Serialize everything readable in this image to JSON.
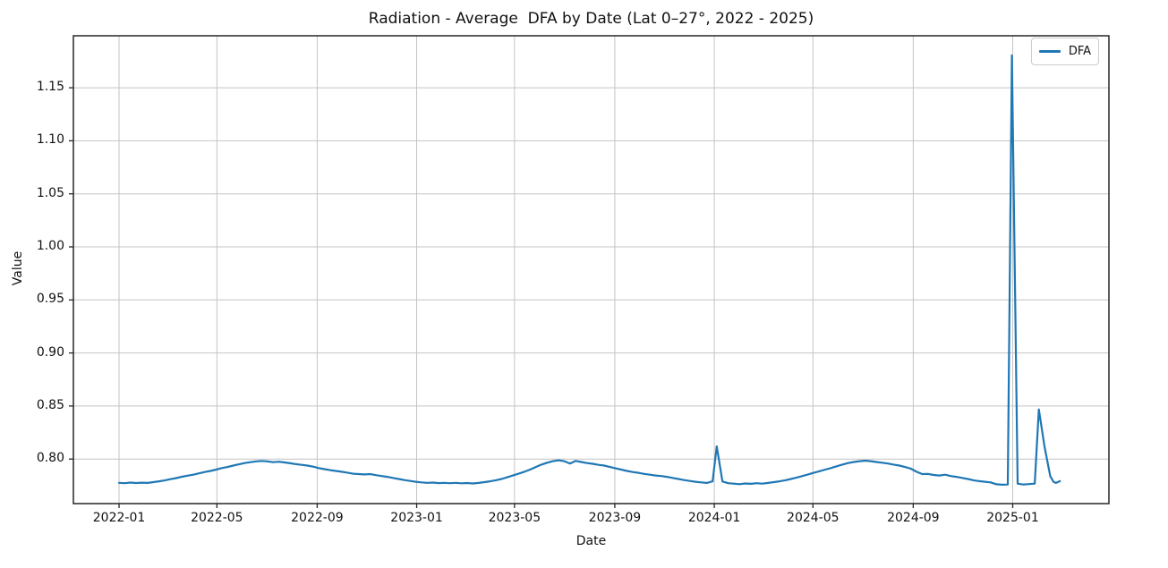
{
  "chart_data": {
    "type": "line",
    "title": "Radiation - Average  DFA by Date (Lat 0–27°, 2022 - 2025)",
    "xlabel": "Date",
    "ylabel": "Value",
    "grid": true,
    "legend": {
      "position": "upper right",
      "entries": [
        {
          "label": "DFA",
          "color": "#1f77b4"
        }
      ]
    },
    "x_axis": {
      "type": "date",
      "lim": [
        "2021-11-06",
        "2025-04-29"
      ],
      "ticks": [
        "2022-01",
        "2022-05",
        "2022-09",
        "2023-01",
        "2023-05",
        "2023-09",
        "2024-01",
        "2024-05",
        "2024-09",
        "2025-01"
      ]
    },
    "y_axis": {
      "lim": [
        0.758,
        1.199
      ],
      "ticks": [
        0.8,
        0.85,
        0.9,
        0.95,
        1.0,
        1.05,
        1.1,
        1.15
      ],
      "tick_labels": [
        "0.80",
        "0.85",
        "0.90",
        "0.95",
        "1.00",
        "1.05",
        "1.10",
        "1.15"
      ]
    },
    "series": [
      {
        "name": "DFA",
        "color": "#1f77b4",
        "line_width": 2.2,
        "points": [
          [
            "2022-01-01",
            0.7776
          ],
          [
            "2022-01-08",
            0.7772
          ],
          [
            "2022-01-15",
            0.7778
          ],
          [
            "2022-01-22",
            0.7774
          ],
          [
            "2022-01-29",
            0.7777
          ],
          [
            "2022-02-05",
            0.7775
          ],
          [
            "2022-02-12",
            0.7782
          ],
          [
            "2022-02-19",
            0.779
          ],
          [
            "2022-02-26",
            0.7798
          ],
          [
            "2022-03-05",
            0.781
          ],
          [
            "2022-03-12",
            0.782
          ],
          [
            "2022-03-19",
            0.7833
          ],
          [
            "2022-03-26",
            0.7843
          ],
          [
            "2022-04-02",
            0.7852
          ],
          [
            "2022-04-09",
            0.7865
          ],
          [
            "2022-04-16",
            0.7878
          ],
          [
            "2022-04-23",
            0.7888
          ],
          [
            "2022-04-30",
            0.79
          ],
          [
            "2022-05-07",
            0.7915
          ],
          [
            "2022-05-14",
            0.7925
          ],
          [
            "2022-05-21",
            0.7938
          ],
          [
            "2022-05-28",
            0.795
          ],
          [
            "2022-06-04",
            0.7962
          ],
          [
            "2022-06-11",
            0.797
          ],
          [
            "2022-06-18",
            0.7978
          ],
          [
            "2022-06-25",
            0.7982
          ],
          [
            "2022-07-02",
            0.7978
          ],
          [
            "2022-07-09",
            0.797
          ],
          [
            "2022-07-16",
            0.7975
          ],
          [
            "2022-07-23",
            0.7968
          ],
          [
            "2022-07-30",
            0.796
          ],
          [
            "2022-08-06",
            0.7952
          ],
          [
            "2022-08-13",
            0.7945
          ],
          [
            "2022-08-20",
            0.7938
          ],
          [
            "2022-08-27",
            0.7928
          ],
          [
            "2022-09-03",
            0.7915
          ],
          [
            "2022-09-10",
            0.7905
          ],
          [
            "2022-09-17",
            0.7895
          ],
          [
            "2022-09-24",
            0.7888
          ],
          [
            "2022-10-01",
            0.788
          ],
          [
            "2022-10-08",
            0.7872
          ],
          [
            "2022-10-15",
            0.7862
          ],
          [
            "2022-10-22",
            0.7858
          ],
          [
            "2022-10-29",
            0.7855
          ],
          [
            "2022-11-05",
            0.7858
          ],
          [
            "2022-11-12",
            0.7848
          ],
          [
            "2022-11-19",
            0.784
          ],
          [
            "2022-11-26",
            0.7832
          ],
          [
            "2022-12-03",
            0.7822
          ],
          [
            "2022-12-10",
            0.7812
          ],
          [
            "2022-12-17",
            0.7802
          ],
          [
            "2022-12-24",
            0.7793
          ],
          [
            "2022-12-31",
            0.7786
          ],
          [
            "2023-01-07",
            0.778
          ],
          [
            "2023-01-14",
            0.7776
          ],
          [
            "2023-01-21",
            0.7778
          ],
          [
            "2023-01-28",
            0.7773
          ],
          [
            "2023-02-04",
            0.7776
          ],
          [
            "2023-02-11",
            0.7772
          ],
          [
            "2023-02-18",
            0.7776
          ],
          [
            "2023-02-25",
            0.7771
          ],
          [
            "2023-03-04",
            0.7774
          ],
          [
            "2023-03-11",
            0.777
          ],
          [
            "2023-03-18",
            0.7775
          ],
          [
            "2023-03-25",
            0.7782
          ],
          [
            "2023-04-01",
            0.779
          ],
          [
            "2023-04-08",
            0.78
          ],
          [
            "2023-04-15",
            0.7812
          ],
          [
            "2023-04-22",
            0.7828
          ],
          [
            "2023-04-29",
            0.7845
          ],
          [
            "2023-05-06",
            0.7862
          ],
          [
            "2023-05-13",
            0.788
          ],
          [
            "2023-05-20",
            0.79
          ],
          [
            "2023-05-27",
            0.7925
          ],
          [
            "2023-06-03",
            0.7948
          ],
          [
            "2023-06-10",
            0.7965
          ],
          [
            "2023-06-17",
            0.798
          ],
          [
            "2023-06-24",
            0.7988
          ],
          [
            "2023-07-01",
            0.798
          ],
          [
            "2023-07-08",
            0.7958
          ],
          [
            "2023-07-15",
            0.7982
          ],
          [
            "2023-07-22",
            0.7972
          ],
          [
            "2023-07-29",
            0.7962
          ],
          [
            "2023-08-05",
            0.7955
          ],
          [
            "2023-08-12",
            0.7945
          ],
          [
            "2023-08-19",
            0.7938
          ],
          [
            "2023-08-26",
            0.7925
          ],
          [
            "2023-09-02",
            0.7912
          ],
          [
            "2023-09-09",
            0.79
          ],
          [
            "2023-09-16",
            0.7888
          ],
          [
            "2023-09-23",
            0.7878
          ],
          [
            "2023-09-30",
            0.787
          ],
          [
            "2023-10-07",
            0.786
          ],
          [
            "2023-10-14",
            0.7852
          ],
          [
            "2023-10-21",
            0.7845
          ],
          [
            "2023-10-28",
            0.784
          ],
          [
            "2023-11-04",
            0.7832
          ],
          [
            "2023-11-11",
            0.7822
          ],
          [
            "2023-11-18",
            0.7812
          ],
          [
            "2023-11-25",
            0.7802
          ],
          [
            "2023-12-02",
            0.7793
          ],
          [
            "2023-12-09",
            0.7786
          ],
          [
            "2023-12-16",
            0.778
          ],
          [
            "2023-12-23",
            0.7775
          ],
          [
            "2023-12-30",
            0.779
          ],
          [
            "2024-01-04",
            0.812
          ],
          [
            "2024-01-11",
            0.7788
          ],
          [
            "2024-01-18",
            0.7772
          ],
          [
            "2024-01-25",
            0.7768
          ],
          [
            "2024-02-01",
            0.7763
          ],
          [
            "2024-02-08",
            0.777
          ],
          [
            "2024-02-15",
            0.7766
          ],
          [
            "2024-02-22",
            0.7772
          ],
          [
            "2024-02-29",
            0.7768
          ],
          [
            "2024-03-07",
            0.7775
          ],
          [
            "2024-03-14",
            0.7782
          ],
          [
            "2024-03-21",
            0.779
          ],
          [
            "2024-03-28",
            0.78
          ],
          [
            "2024-04-04",
            0.7812
          ],
          [
            "2024-04-11",
            0.7825
          ],
          [
            "2024-04-18",
            0.784
          ],
          [
            "2024-04-25",
            0.7855
          ],
          [
            "2024-05-02",
            0.787
          ],
          [
            "2024-05-09",
            0.7885
          ],
          [
            "2024-05-16",
            0.79
          ],
          [
            "2024-05-23",
            0.7915
          ],
          [
            "2024-05-30",
            0.7932
          ],
          [
            "2024-06-06",
            0.7948
          ],
          [
            "2024-06-13",
            0.7962
          ],
          [
            "2024-06-20",
            0.7972
          ],
          [
            "2024-06-27",
            0.798
          ],
          [
            "2024-07-04",
            0.7985
          ],
          [
            "2024-07-11",
            0.798
          ],
          [
            "2024-07-18",
            0.7972
          ],
          [
            "2024-07-25",
            0.7965
          ],
          [
            "2024-08-01",
            0.7958
          ],
          [
            "2024-08-08",
            0.7948
          ],
          [
            "2024-08-15",
            0.7938
          ],
          [
            "2024-08-22",
            0.7925
          ],
          [
            "2024-08-29",
            0.791
          ],
          [
            "2024-09-05",
            0.788
          ],
          [
            "2024-09-12",
            0.7858
          ],
          [
            "2024-09-19",
            0.786
          ],
          [
            "2024-09-26",
            0.785
          ],
          [
            "2024-10-03",
            0.7845
          ],
          [
            "2024-10-10",
            0.7852
          ],
          [
            "2024-10-17",
            0.784
          ],
          [
            "2024-10-24",
            0.7832
          ],
          [
            "2024-10-31",
            0.7822
          ],
          [
            "2024-11-07",
            0.7812
          ],
          [
            "2024-11-14",
            0.78
          ],
          [
            "2024-11-21",
            0.7792
          ],
          [
            "2024-11-28",
            0.7786
          ],
          [
            "2024-12-05",
            0.778
          ],
          [
            "2024-12-12",
            0.7762
          ],
          [
            "2024-12-19",
            0.7758
          ],
          [
            "2024-12-26",
            0.776
          ],
          [
            "2024-12-31",
            1.1805
          ],
          [
            "2025-01-07",
            0.7768
          ],
          [
            "2025-01-14",
            0.776
          ],
          [
            "2025-01-21",
            0.7764
          ],
          [
            "2025-01-28",
            0.7768
          ],
          [
            "2025-02-02",
            0.8468
          ],
          [
            "2025-02-09",
            0.812
          ],
          [
            "2025-02-16",
            0.784
          ],
          [
            "2025-02-20",
            0.7785
          ],
          [
            "2025-02-23",
            0.7775
          ],
          [
            "2025-02-28",
            0.7792
          ]
        ]
      }
    ]
  },
  "colors": {
    "line": "#1f77b4",
    "grid": "#c4c4c4",
    "spine": "#262626",
    "text": "#111111",
    "background": "#ffffff"
  }
}
